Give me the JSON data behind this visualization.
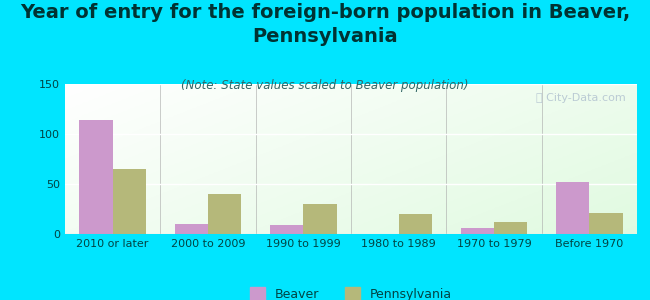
{
  "title": "Year of entry for the foreign-born population in Beaver,\nPennsylvania",
  "subtitle": "(Note: State values scaled to Beaver population)",
  "categories": [
    "2010 or later",
    "2000 to 2009",
    "1990 to 1999",
    "1980 to 1989",
    "1970 to 1979",
    "Before 1970"
  ],
  "beaver_values": [
    114,
    10,
    9,
    0,
    6,
    52
  ],
  "pennsylvania_values": [
    65,
    40,
    30,
    20,
    12,
    21
  ],
  "beaver_color": "#cc99cc",
  "pennsylvania_color": "#b5b87a",
  "background_color": "#00e5ff",
  "ylim": [
    0,
    150
  ],
  "yticks": [
    0,
    50,
    100,
    150
  ],
  "watermark": "Ⓜ City-Data.com",
  "legend_beaver": "Beaver",
  "legend_pennsylvania": "Pennsylvania",
  "bar_width": 0.35,
  "title_fontsize": 14,
  "subtitle_fontsize": 8.5,
  "tick_fontsize": 8,
  "legend_fontsize": 9,
  "title_color": "#003333",
  "subtitle_color": "#336666",
  "tick_color": "#004444"
}
